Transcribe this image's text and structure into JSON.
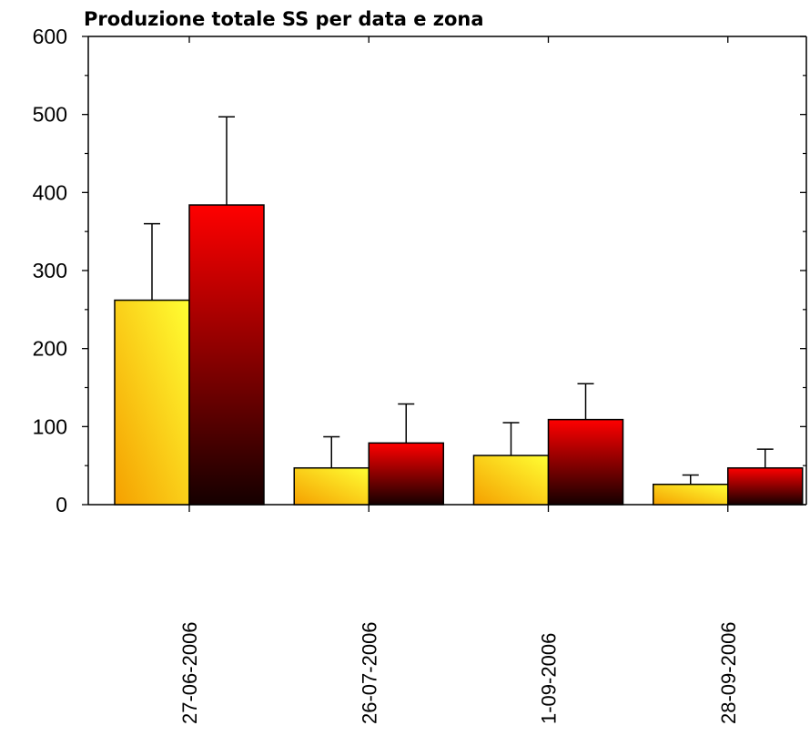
{
  "chart_data": {
    "type": "bar",
    "title": "Produzione totale SS per data e zona",
    "xlabel": "",
    "ylabel": "",
    "categories": [
      "27-06-2006",
      "26-07-2006",
      "1-09-2006",
      "28-09-2006"
    ],
    "series": [
      {
        "values": [
          262,
          47,
          63,
          26
        ],
        "errors": [
          98,
          40,
          42,
          12
        ],
        "color_top": "#ffff33",
        "color_bottom": "#f5a000"
      },
      {
        "values": [
          384,
          79,
          109,
          47
        ],
        "errors": [
          113,
          50,
          46,
          24
        ],
        "color_top": "#ff0000",
        "color_bottom": "#150000"
      }
    ],
    "yticks": [
      0,
      100,
      200,
      300,
      400,
      500,
      600
    ],
    "ylim": [
      0,
      600
    ],
    "grid": false,
    "legend": "none"
  }
}
